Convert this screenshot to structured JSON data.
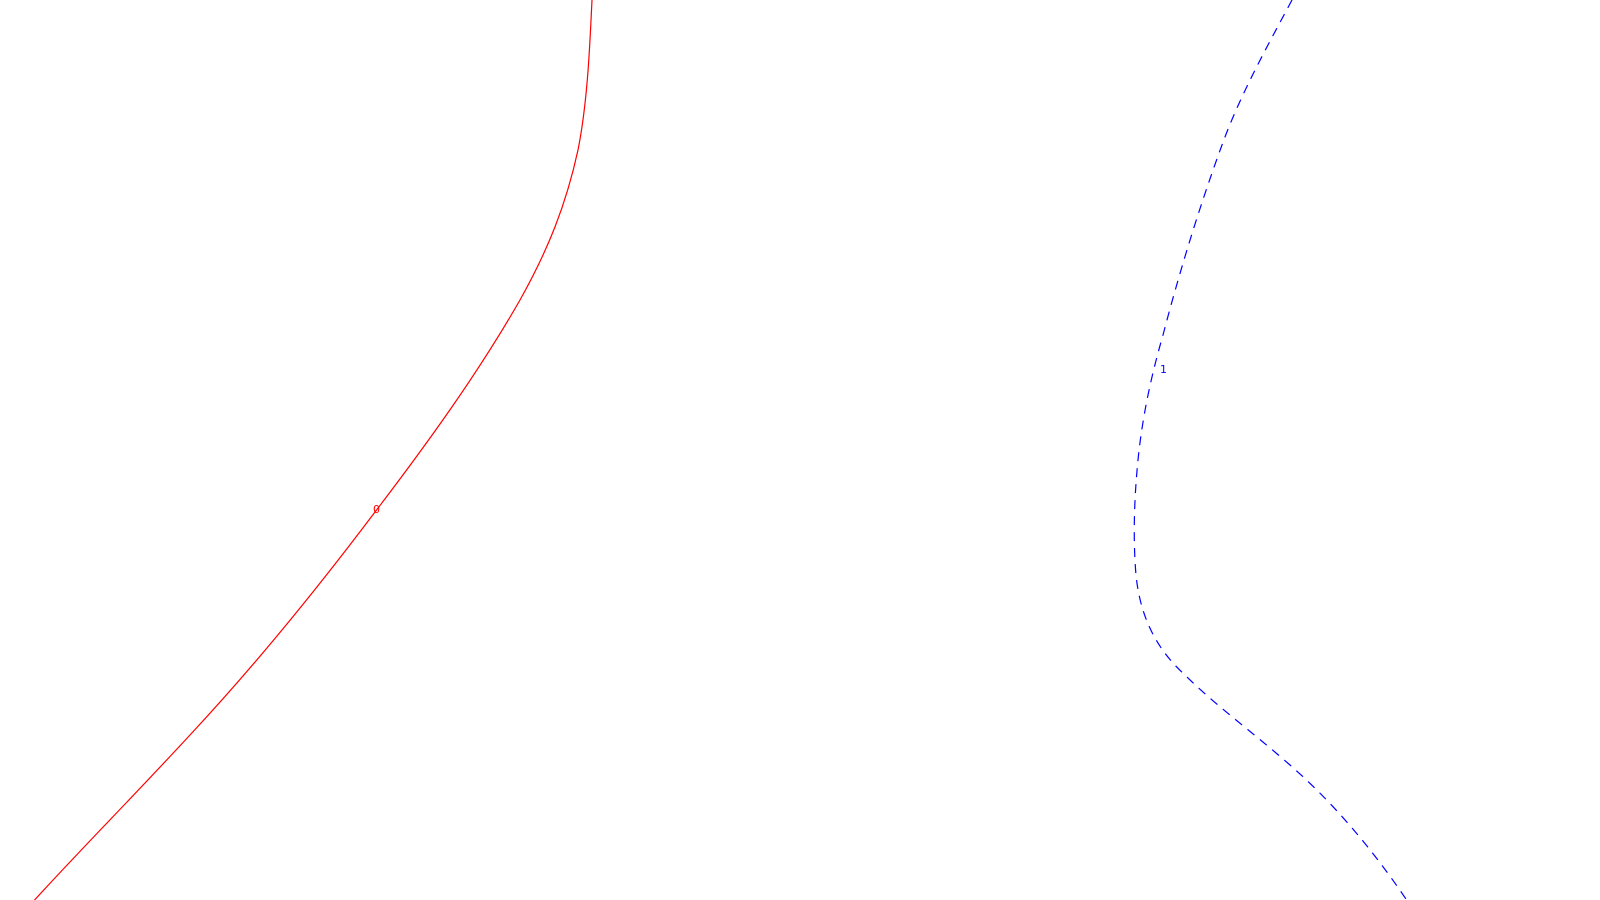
{
  "curves": [
    {
      "label": "0",
      "color": "#ff0000",
      "line_style": "solid"
    },
    {
      "label": "1",
      "color": "#0000ff",
      "line_style": "dashed"
    }
  ]
}
